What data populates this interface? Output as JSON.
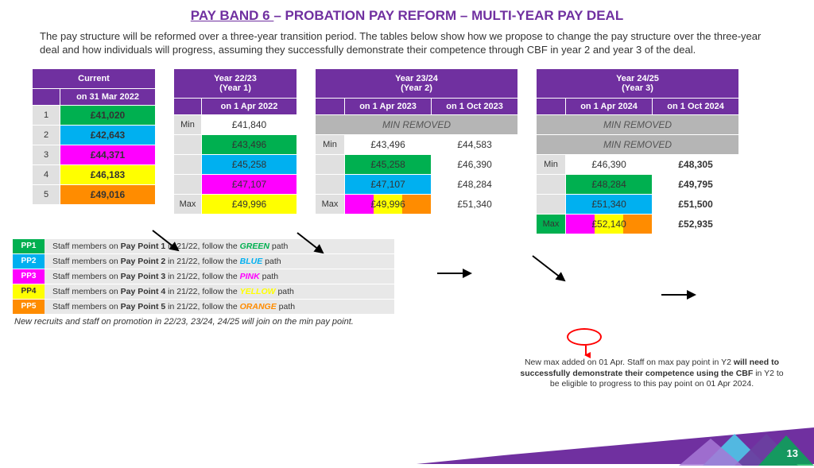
{
  "title_part1": "PAY BAND 6 ",
  "title_part2": "– PROBATION PAY REFORM – MULTI-YEAR PAY DEAL",
  "description": "The pay structure will be reformed over a three-year transition period. The tables below show how we propose to change the pay structure over the three-year deal and how individuals will progress, assuming they successfully demonstrate their competence  through CBF in year 2 and year 3 of the deal.",
  "colors": {
    "purple": "#7030a0",
    "green": "#00b050",
    "blue": "#00b0f0",
    "pink": "#ff00ff",
    "yellow": "#ffff00",
    "orange": "#ff8c00",
    "gray_cell": "#b5b5b5",
    "gray_label": "#e0e0e0"
  },
  "current": {
    "header": "Current",
    "subheader": "on 31 Mar 2022",
    "rows": [
      {
        "lbl": "1",
        "val": "£41,020",
        "bg": "#00b050"
      },
      {
        "lbl": "2",
        "val": "£42,643",
        "bg": "#00b0f0"
      },
      {
        "lbl": "3",
        "val": "£44,371",
        "bg": "#ff00ff"
      },
      {
        "lbl": "4",
        "val": "£46,183",
        "bg": "#ffff00"
      },
      {
        "lbl": "5",
        "val": "£49,016",
        "bg": "#ff8c00"
      }
    ]
  },
  "y1": {
    "header": "Year 22/23",
    "subheader_year": "(Year 1)",
    "col": "on 1 Apr 2022",
    "rows": [
      {
        "lbl": "Min",
        "val": "£41,840",
        "bg": "#ffffff"
      },
      {
        "lbl": "",
        "val": "£43,496",
        "bg": "#00b050"
      },
      {
        "lbl": "",
        "val": "£45,258",
        "bg": "#00b0f0"
      },
      {
        "lbl": "",
        "val": "£47,107",
        "bg": "#ff00ff"
      },
      {
        "lbl": "Max",
        "val": "£49,996",
        "bg": "#ffff00"
      }
    ]
  },
  "y2": {
    "header": "Year 23/24",
    "subheader_year": "(Year 2)",
    "col1": "on 1 Apr 2023",
    "col2": "on 1 Oct 2023",
    "min_removed": "MIN REMOVED",
    "rows": [
      {
        "lbl": "Min",
        "v1": "£43,496",
        "bg1": "#ffffff",
        "v2": "£44,583",
        "bg2": "#ffffff"
      },
      {
        "lbl": "",
        "v1": "£45,258",
        "bg1": "#00b050",
        "v2": "£46,390",
        "bg2": "#ffffff"
      },
      {
        "lbl": "",
        "v1": "£47,107",
        "bg1": "#00b0f0",
        "v2": "£48,284",
        "bg2": "#ffffff"
      },
      {
        "lbl": "Max",
        "v1": "£49,996",
        "bg1": "split",
        "v2": "£51,340",
        "bg2": "#ffffff"
      }
    ]
  },
  "y3": {
    "header": "Year 24/25",
    "subheader_year": "(Year 3)",
    "col1": "on 1 Apr 2024",
    "col2": "on 1 Oct 2024",
    "min_removed": "MIN REMOVED",
    "rows": [
      {
        "lbl": "Min",
        "v1": "£46,390",
        "bg1": "#ffffff",
        "v2": "£48,305",
        "bg2": "#ffffff",
        "bold2": true
      },
      {
        "lbl": "",
        "v1": "£48,284",
        "bg1": "#00b050",
        "v2": "£49,795",
        "bg2": "#ffffff",
        "bold2": true
      },
      {
        "lbl": "",
        "v1": "£51,340",
        "bg1": "#00b0f0",
        "v2": "£51,500",
        "bg2": "#ffffff",
        "bold2": true
      },
      {
        "lbl": "Max",
        "v1": "£52,140",
        "bg1": "split2",
        "v2": "£52,935",
        "bg2": "#ffffff",
        "bold2": true
      }
    ]
  },
  "legend": [
    {
      "chip": "PP1",
      "bg": "#00b050",
      "txt1": "Staff members on ",
      "b": "Pay Point 1",
      "txt2": " in 21/22, follow the ",
      "path": "GREEN",
      "pc": "#00b050",
      "txt3": " path"
    },
    {
      "chip": "PP2",
      "bg": "#00b0f0",
      "txt1": "Staff members on ",
      "b": "Pay Point 2",
      "txt2": " in 21/22, follow the ",
      "path": "BLUE",
      "pc": "#00b0f0",
      "txt3": " path"
    },
    {
      "chip": "PP3",
      "bg": "#ff00ff",
      "txt1": "Staff members on ",
      "b": "Pay Point 3",
      "txt2": " in 21/22, follow the ",
      "path": "PINK",
      "pc": "#ff00ff",
      "txt3": " path"
    },
    {
      "chip": "PP4",
      "bg": "#ffff00",
      "txt1": "Staff members on ",
      "b": "Pay Point 4",
      "txt2": " in 21/22, follow the ",
      "path": "YELLOW",
      "pc": "#ffff00",
      "txt3": " path",
      "fc": "#333"
    },
    {
      "chip": "PP5",
      "bg": "#ff8c00",
      "txt1": "Staff members on ",
      "b": "Pay Point 5",
      "txt2": " in 21/22, follow the ",
      "path": "ORANGE",
      "pc": "#ff8c00",
      "txt3": " path"
    }
  ],
  "note_recruits": "New recruits and staff on promotion in 22/23, 23/24, 24/25 will join on the min pay point.",
  "note_max_1": "New max added on 01 Apr. Staff on max pay point in Y2 ",
  "note_max_b": "will need to successfully demonstrate their competence using the CBF",
  "note_max_2": " in Y2 to be eligible to progress to this pay point on 01 Apr 2024.",
  "page_number": "13"
}
